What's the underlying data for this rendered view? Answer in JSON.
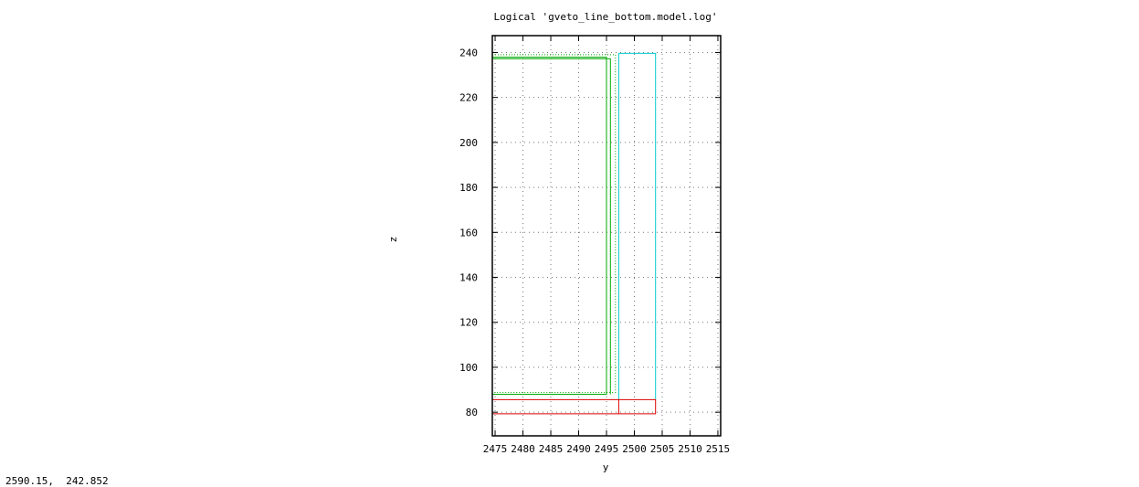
{
  "status_bar": {
    "cursor_readout": "2590.15,  242.852"
  },
  "chart_data": {
    "type": "line",
    "title": "Logical 'gveto_line_bottom.model.log'",
    "xlabel": "y",
    "ylabel": "z",
    "xlim": [
      2474.5,
      2515.5
    ],
    "ylim": [
      69.5,
      247.5
    ],
    "xticks": [
      2475,
      2480,
      2485,
      2490,
      2495,
      2500,
      2505,
      2510,
      2515
    ],
    "yticks": [
      80,
      100,
      120,
      140,
      160,
      180,
      200,
      220,
      240
    ],
    "grid": true,
    "legend": "none",
    "series": [
      {
        "color": "#00aa00",
        "dashed": false,
        "points": [
          [
            2474.5,
            237.9
          ],
          [
            2495.0,
            237.9
          ],
          [
            2495.0,
            88.0
          ],
          [
            2474.5,
            88.0
          ]
        ]
      },
      {
        "color": "#00aa00",
        "dashed": false,
        "points": [
          [
            2474.5,
            237.2
          ],
          [
            2495.7,
            237.2
          ],
          [
            2495.7,
            88.0
          ]
        ]
      },
      {
        "color": "#00aa00",
        "dashed": true,
        "points": [
          [
            2474.5,
            239.0
          ],
          [
            2496.6,
            239.0
          ],
          [
            2496.6,
            88.8
          ],
          [
            2474.5,
            88.8
          ]
        ]
      },
      {
        "color": "#00cccc",
        "dashed": false,
        "points": [
          [
            2497.2,
            239.6
          ],
          [
            2497.2,
            85.6
          ]
        ]
      },
      {
        "color": "#00cccc",
        "dashed": false,
        "points": [
          [
            2497.2,
            239.6
          ],
          [
            2503.8,
            239.6
          ],
          [
            2503.8,
            85.6
          ]
        ]
      },
      {
        "color": "#dd0000",
        "dashed": false,
        "points": [
          [
            2474.5,
            85.6
          ],
          [
            2503.8,
            85.6
          ],
          [
            2503.8,
            79.3
          ],
          [
            2474.5,
            79.3
          ]
        ]
      },
      {
        "color": "#dd0000",
        "dashed": false,
        "points": [
          [
            2497.2,
            85.6
          ],
          [
            2497.2,
            79.3
          ]
        ]
      }
    ]
  }
}
